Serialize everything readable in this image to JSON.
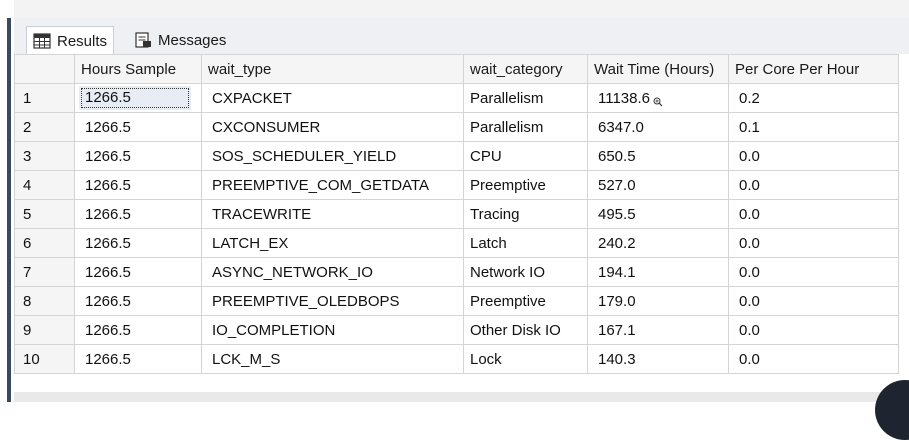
{
  "tabs": [
    {
      "label": "Results",
      "icon": "grid-icon",
      "active": true
    },
    {
      "label": "Messages",
      "icon": "messages-icon",
      "active": false
    }
  ],
  "grid": {
    "columns": [
      "",
      "Hours Sample",
      "wait_type",
      "wait_category",
      "Wait Time (Hours)",
      "Per Core Per Hour"
    ],
    "rows": [
      [
        "1",
        "1266.5",
        "CXPACKET",
        "Parallelism",
        "11138.6",
        "0.2"
      ],
      [
        "2",
        "1266.5",
        "CXCONSUMER",
        "Parallelism",
        "6347.0",
        "0.1"
      ],
      [
        "3",
        "1266.5",
        "SOS_SCHEDULER_YIELD",
        "CPU",
        "650.5",
        "0.0"
      ],
      [
        "4",
        "1266.5",
        "PREEMPTIVE_COM_GETDATA",
        "Preemptive",
        "527.0",
        "0.0"
      ],
      [
        "5",
        "1266.5",
        "TRACEWRITE",
        "Tracing",
        "495.5",
        "0.0"
      ],
      [
        "6",
        "1266.5",
        "LATCH_EX",
        "Latch",
        "240.2",
        "0.0"
      ],
      [
        "7",
        "1266.5",
        "ASYNC_NETWORK_IO",
        "Network IO",
        "194.1",
        "0.0"
      ],
      [
        "8",
        "1266.5",
        "PREEMPTIVE_OLEDBOPS",
        "Preemptive",
        "179.0",
        "0.0"
      ],
      [
        "9",
        "1266.5",
        "IO_COMPLETION",
        "Other Disk IO",
        "167.1",
        "0.0"
      ],
      [
        "10",
        "1266.5",
        "LCK_M_S",
        "Lock",
        "140.3",
        "0.0"
      ]
    ]
  },
  "colors": {
    "accent_rail": "#3a4a5c",
    "header_bg": "#f5f5f5",
    "grid_line": "#d4d4d4"
  }
}
